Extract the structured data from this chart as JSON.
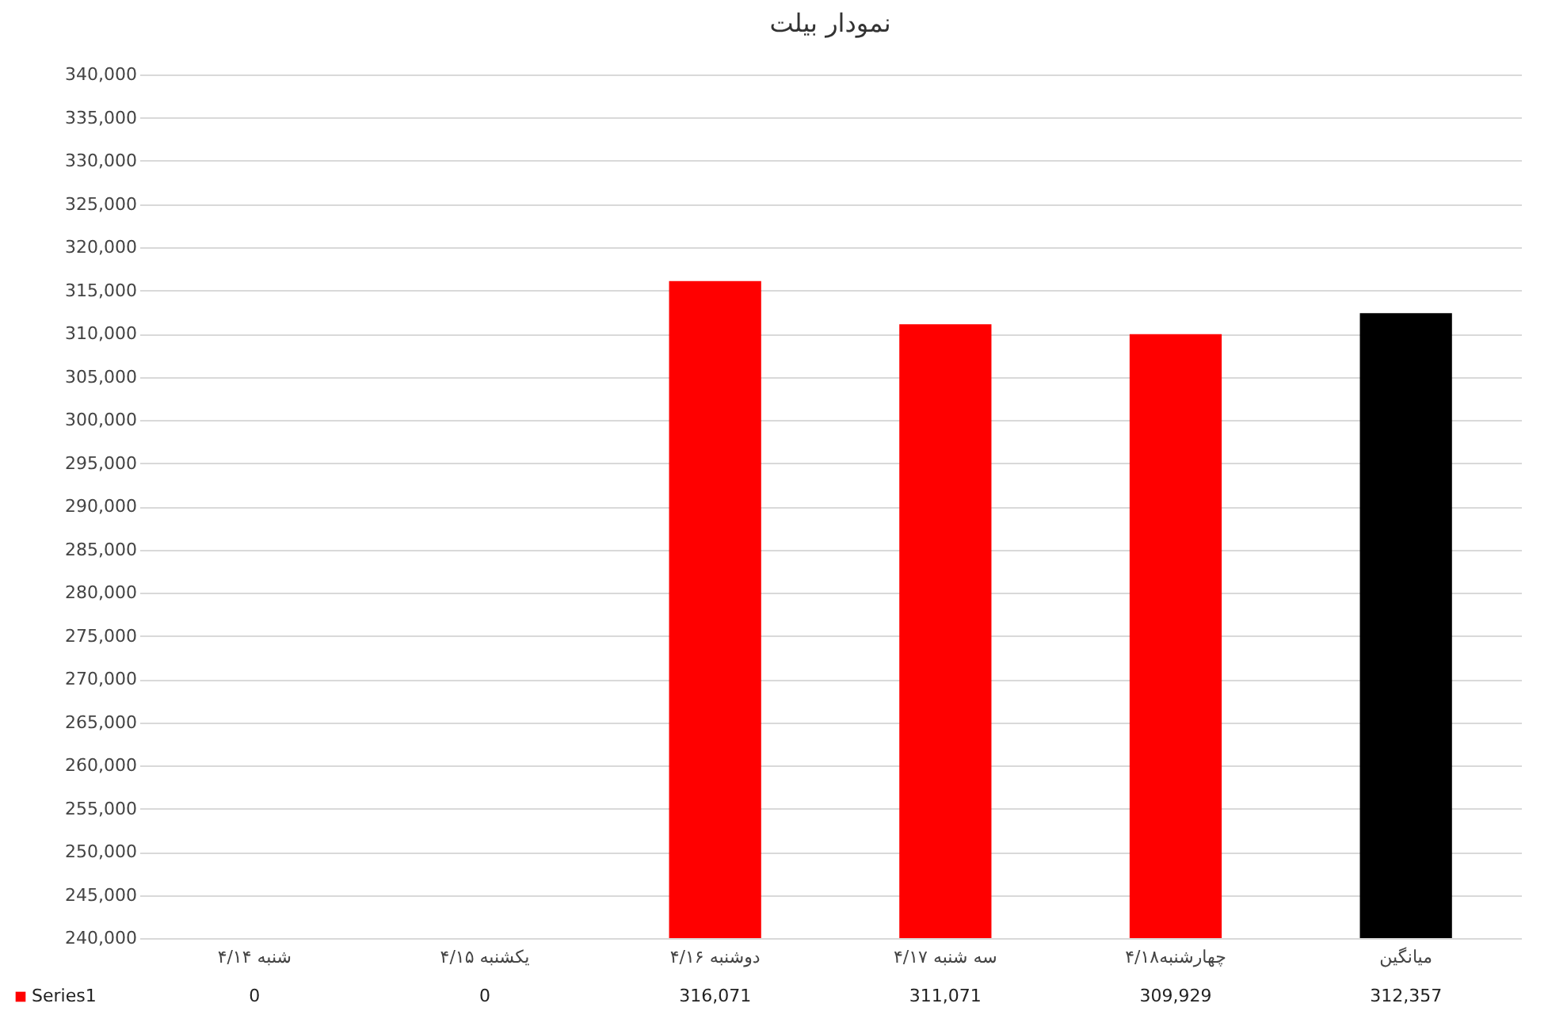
{
  "chart_data": {
    "type": "bar",
    "title": "نمودار بیلت",
    "categories": [
      "شنبه ۴/۱۴",
      "یکشنبه ۴/۱۵",
      "دوشنبه ۴/۱۶",
      "سه شنبه ۴/۱۷",
      "چهارشنبه۴/۱۸",
      "میانگین"
    ],
    "series": [
      {
        "name": "Series1",
        "color": "#ff0000",
        "colors": [
          "#ff0000",
          "#ff0000",
          "#ff0000",
          "#ff0000",
          "#ff0000",
          "#000000"
        ],
        "values": [
          null,
          null,
          316071,
          311071,
          309929,
          312357
        ],
        "value_labels": [
          "0",
          "0",
          "316,071",
          "311,071",
          "309,929",
          "312,357"
        ]
      }
    ],
    "ylim": [
      240000,
      340000
    ],
    "yticks": [
      {
        "value": 240000,
        "label": "240,000"
      },
      {
        "value": 245000,
        "label": "245,000"
      },
      {
        "value": 250000,
        "label": "250,000"
      },
      {
        "value": 255000,
        "label": "255,000"
      },
      {
        "value": 260000,
        "label": "260,000"
      },
      {
        "value": 265000,
        "label": "265,000"
      },
      {
        "value": 270000,
        "label": "270,000"
      },
      {
        "value": 275000,
        "label": "275,000"
      },
      {
        "value": 280000,
        "label": "280,000"
      },
      {
        "value": 285000,
        "label": "285,000"
      },
      {
        "value": 290000,
        "label": "290,000"
      },
      {
        "value": 295000,
        "label": "295,000"
      },
      {
        "value": 300000,
        "label": "300,000"
      },
      {
        "value": 305000,
        "label": "305,000"
      },
      {
        "value": 310000,
        "label": "310,000"
      },
      {
        "value": 315000,
        "label": "315,000"
      },
      {
        "value": 320000,
        "label": "320,000"
      },
      {
        "value": 325000,
        "label": "325,000"
      },
      {
        "value": 330000,
        "label": "330,000"
      },
      {
        "value": 335000,
        "label": "335,000"
      },
      {
        "value": 340000,
        "label": "340,000"
      }
    ],
    "grid": "y",
    "legend": "bottom"
  }
}
